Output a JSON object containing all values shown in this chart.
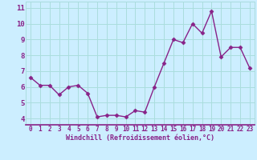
{
  "x": [
    0,
    1,
    2,
    3,
    4,
    5,
    6,
    7,
    8,
    9,
    10,
    11,
    12,
    13,
    14,
    15,
    16,
    17,
    18,
    19,
    20,
    21,
    22,
    23
  ],
  "y": [
    6.6,
    6.1,
    6.1,
    5.5,
    6.0,
    6.1,
    5.6,
    4.1,
    4.2,
    4.2,
    4.1,
    4.5,
    4.4,
    6.0,
    7.5,
    9.0,
    8.8,
    10.0,
    9.4,
    10.8,
    7.9,
    8.5,
    8.5,
    7.2
  ],
  "line_color": "#882288",
  "marker_color": "#882288",
  "bg_color": "#cceeff",
  "grid_color": "#aadddd",
  "xlabel": "Windchill (Refroidissement éolien,°C)",
  "ylabel_ticks": [
    4,
    5,
    6,
    7,
    8,
    9,
    10,
    11
  ],
  "xlim": [
    -0.5,
    23.5
  ],
  "ylim": [
    3.6,
    11.4
  ],
  "xlabel_color": "#882288",
  "tick_color": "#882288",
  "tick_fontsize": 5.5,
  "xlabel_fontsize": 6.0,
  "marker_size": 2.5,
  "line_width": 1.0
}
